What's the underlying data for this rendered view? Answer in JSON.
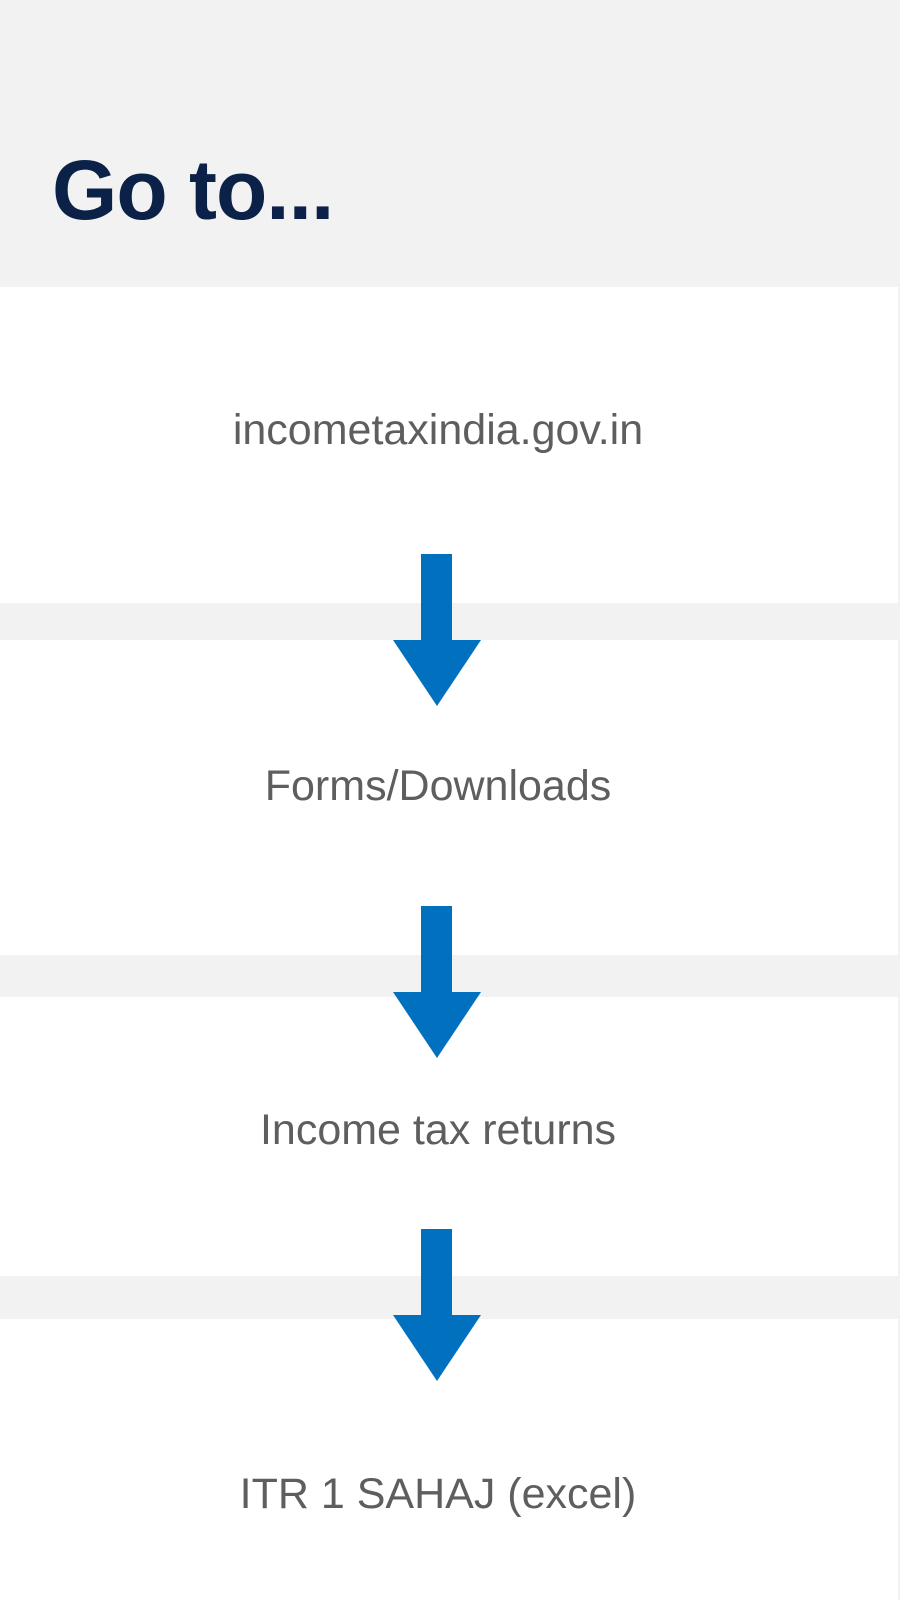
{
  "header": {
    "title": "Go to..."
  },
  "steps": [
    {
      "label": "incometaxindia.gov.in"
    },
    {
      "label": "Forms/Downloads"
    },
    {
      "label": "Income tax returns"
    },
    {
      "label": "ITR 1 SAHAJ (excel)"
    }
  ],
  "colors": {
    "title": "#0c2148",
    "step_text": "#5e5e5e",
    "arrow": "#0070bf",
    "band": "#f2f2f2",
    "background": "#ffffff"
  },
  "icons": {
    "arrow": "arrow-down-icon"
  }
}
